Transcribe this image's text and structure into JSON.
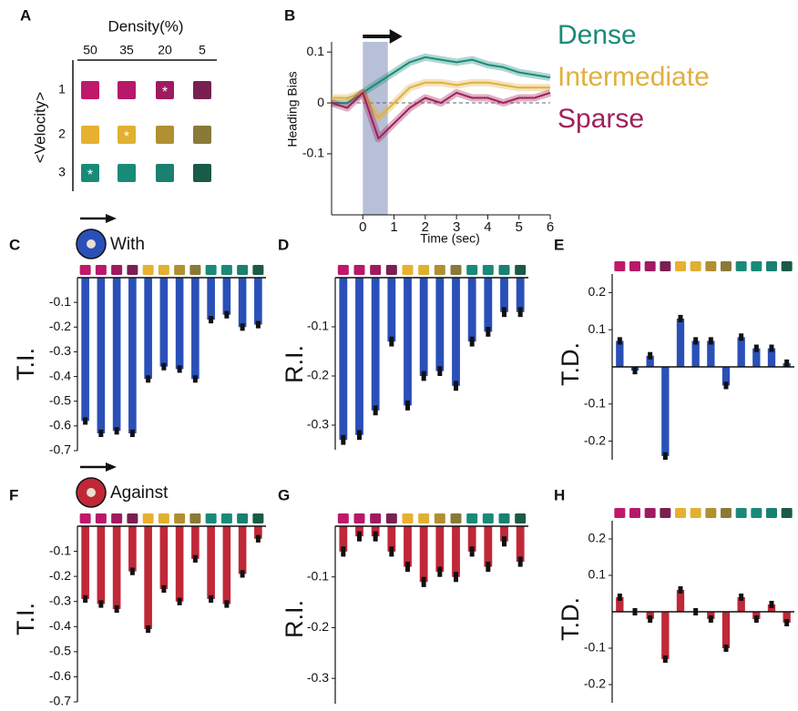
{
  "chart_data": [
    {
      "type": "swatch-grid",
      "panel": "A",
      "title": "Density(%)",
      "columns": [
        "50",
        "35",
        "20",
        "5"
      ],
      "ylabel": "<Velocity>",
      "rows": [
        "1",
        "2",
        "3"
      ],
      "colors": [
        [
          "#c0186a",
          "#b8186a",
          "#a01a60",
          "#7a2050"
        ],
        [
          "#e8b030",
          "#e0b030",
          "#b09030",
          "#8a7a38"
        ],
        [
          "#1a8a78",
          "#1a8a78",
          "#1a8070",
          "#1a5a48"
        ]
      ],
      "cell_labels": [
        [
          null,
          null,
          "*",
          null
        ],
        [
          null,
          "*",
          null,
          null
        ],
        [
          "*",
          null,
          null,
          null
        ]
      ]
    },
    {
      "type": "line",
      "panel": "B",
      "ylabel": "Heading Bias",
      "xlabel": "Time (sec)",
      "x": [
        -1,
        -0.5,
        0,
        0.5,
        1,
        1.5,
        2,
        2.5,
        3,
        3.5,
        4,
        4.5,
        5,
        5.5,
        6
      ],
      "xlim": [
        -1,
        6
      ],
      "xticks": [
        0,
        1,
        2,
        3,
        4,
        5,
        6
      ],
      "ylim": [
        -0.22,
        0.12
      ],
      "yticks": [
        -0.1,
        0,
        0.1
      ],
      "shade": [
        0,
        0.8
      ],
      "series": [
        {
          "name": "Dense",
          "color": "#1a8a78",
          "values": [
            0.0,
            0.0,
            0.02,
            0.04,
            0.06,
            0.08,
            0.09,
            0.085,
            0.08,
            0.085,
            0.075,
            0.07,
            0.06,
            0.055,
            0.05
          ]
        },
        {
          "name": "Intermediate",
          "color": "#e0b040",
          "values": [
            0.01,
            0.01,
            0.02,
            -0.03,
            0.0,
            0.03,
            0.04,
            0.04,
            0.035,
            0.04,
            0.04,
            0.035,
            0.03,
            0.03,
            0.03
          ]
        },
        {
          "name": "Sparse",
          "color": "#a0205a",
          "values": [
            0.0,
            -0.01,
            0.02,
            -0.07,
            -0.04,
            -0.01,
            0.01,
            0.0,
            0.02,
            0.01,
            0.01,
            0.0,
            0.01,
            0.01,
            0.02
          ]
        }
      ]
    },
    {
      "type": "bar",
      "panel": "C",
      "title": "With",
      "ylabel": "T.I.",
      "color": "#2a50b8",
      "categories": [
        null,
        null,
        null,
        null,
        null,
        null,
        null,
        null,
        null,
        null,
        null,
        null
      ],
      "category_colors": [
        "#c0186a",
        "#b8186a",
        "#a01a60",
        "#7a2050",
        "#e8b030",
        "#e0b030",
        "#b09030",
        "#8a7a38",
        "#1a8a78",
        "#1a8a78",
        "#1a8070",
        "#1a5a48"
      ],
      "values": [
        -0.58,
        -0.63,
        -0.62,
        -0.63,
        -0.41,
        -0.36,
        -0.37,
        -0.41,
        -0.17,
        -0.15,
        -0.2,
        -0.19
      ],
      "errors": [
        0.015,
        0.015,
        0.015,
        0.015,
        0.015,
        0.015,
        0.015,
        0.015,
        0.015,
        0.015,
        0.015,
        0.015
      ],
      "ylim": [
        -0.7,
        0
      ],
      "yticks": [
        -0.1,
        -0.2,
        -0.3,
        -0.4,
        -0.5,
        -0.6,
        -0.7
      ]
    },
    {
      "type": "bar",
      "panel": "D",
      "ylabel": "R.I.",
      "color": "#2a50b8",
      "categories": [
        null,
        null,
        null,
        null,
        null,
        null,
        null,
        null,
        null,
        null,
        null,
        null
      ],
      "category_colors": [
        "#c0186a",
        "#b8186a",
        "#a01a60",
        "#7a2050",
        "#e8b030",
        "#e0b030",
        "#b09030",
        "#8a7a38",
        "#1a8a78",
        "#1a8a78",
        "#1a8070",
        "#1a5a48"
      ],
      "values": [
        -0.33,
        -0.32,
        -0.27,
        -0.13,
        -0.26,
        -0.2,
        -0.19,
        -0.22,
        -0.13,
        -0.11,
        -0.07,
        -0.07
      ],
      "errors": [
        0.01,
        0.01,
        0.01,
        0.01,
        0.01,
        0.01,
        0.01,
        0.01,
        0.01,
        0.01,
        0.01,
        0.01
      ],
      "ylim": [
        -0.35,
        0
      ],
      "yticks": [
        -0.1,
        -0.2,
        -0.3
      ]
    },
    {
      "type": "bar",
      "panel": "E",
      "ylabel": "T.D.",
      "color": "#2a50b8",
      "categories": [
        null,
        null,
        null,
        null,
        null,
        null,
        null,
        null,
        null,
        null,
        null,
        null
      ],
      "category_colors": [
        "#c0186a",
        "#b8186a",
        "#a01a60",
        "#7a2050",
        "#e8b030",
        "#e0b030",
        "#b09030",
        "#8a7a38",
        "#1a8a78",
        "#1a8a78",
        "#1a8070",
        "#1a5a48"
      ],
      "values": [
        0.07,
        -0.01,
        0.03,
        -0.24,
        0.13,
        0.07,
        0.07,
        -0.05,
        0.08,
        0.05,
        0.05,
        0.01
      ],
      "errors": [
        0.01,
        0.01,
        0.01,
        0.01,
        0.01,
        0.01,
        0.01,
        0.01,
        0.01,
        0.01,
        0.01,
        0.01
      ],
      "ylim": [
        -0.25,
        0.25
      ],
      "yticks": [
        0.2,
        0.1,
        -0.1,
        -0.2
      ]
    },
    {
      "type": "bar",
      "panel": "F",
      "title": "Against",
      "ylabel": "T.I.",
      "color": "#c02838",
      "categories": [
        null,
        null,
        null,
        null,
        null,
        null,
        null,
        null,
        null,
        null,
        null,
        null
      ],
      "category_colors": [
        "#c0186a",
        "#b8186a",
        "#a01a60",
        "#7a2050",
        "#e8b030",
        "#e0b030",
        "#b09030",
        "#8a7a38",
        "#1a8a78",
        "#1a8a78",
        "#1a8070",
        "#1a5a48"
      ],
      "values": [
        -0.29,
        -0.31,
        -0.33,
        -0.18,
        -0.41,
        -0.25,
        -0.3,
        -0.13,
        -0.29,
        -0.31,
        -0.19,
        -0.05
      ],
      "errors": [
        0.015,
        0.015,
        0.015,
        0.015,
        0.015,
        0.015,
        0.015,
        0.015,
        0.015,
        0.015,
        0.015,
        0.015
      ],
      "ylim": [
        -0.7,
        0
      ],
      "yticks": [
        -0.1,
        -0.2,
        -0.3,
        -0.4,
        -0.5,
        -0.6,
        -0.7
      ]
    },
    {
      "type": "bar",
      "panel": "G",
      "ylabel": "R.I.",
      "color": "#c02838",
      "categories": [
        null,
        null,
        null,
        null,
        null,
        null,
        null,
        null,
        null,
        null,
        null,
        null
      ],
      "category_colors": [
        "#c0186a",
        "#b8186a",
        "#a01a60",
        "#7a2050",
        "#e8b030",
        "#e0b030",
        "#b09030",
        "#8a7a38",
        "#1a8a78",
        "#1a8a78",
        "#1a8070",
        "#1a5a48"
      ],
      "values": [
        -0.05,
        -0.02,
        -0.02,
        -0.05,
        -0.08,
        -0.11,
        -0.09,
        -0.1,
        -0.05,
        -0.08,
        -0.03,
        -0.07
      ],
      "errors": [
        0.01,
        0.01,
        0.01,
        0.01,
        0.01,
        0.01,
        0.01,
        0.01,
        0.01,
        0.01,
        0.01,
        0.01
      ],
      "ylim": [
        -0.35,
        0
      ],
      "yticks": [
        -0.1,
        -0.2,
        -0.3
      ]
    },
    {
      "type": "bar",
      "panel": "H",
      "ylabel": "T.D.",
      "color": "#c02838",
      "categories": [
        null,
        null,
        null,
        null,
        null,
        null,
        null,
        null,
        null,
        null,
        null,
        null
      ],
      "category_colors": [
        "#c0186a",
        "#b8186a",
        "#a01a60",
        "#7a2050",
        "#e8b030",
        "#e0b030",
        "#b09030",
        "#8a7a38",
        "#1a8a78",
        "#1a8a78",
        "#1a8070",
        "#1a5a48"
      ],
      "values": [
        0.04,
        0.0,
        -0.02,
        -0.13,
        0.06,
        0.0,
        -0.02,
        -0.1,
        0.04,
        -0.02,
        0.02,
        -0.03
      ],
      "errors": [
        0.01,
        0.01,
        0.01,
        0.01,
        0.01,
        0.01,
        0.01,
        0.01,
        0.01,
        0.01,
        0.01,
        0.01
      ],
      "ylim": [
        -0.25,
        0.25
      ],
      "yticks": [
        0.2,
        0.1,
        -0.1,
        -0.2
      ]
    }
  ]
}
